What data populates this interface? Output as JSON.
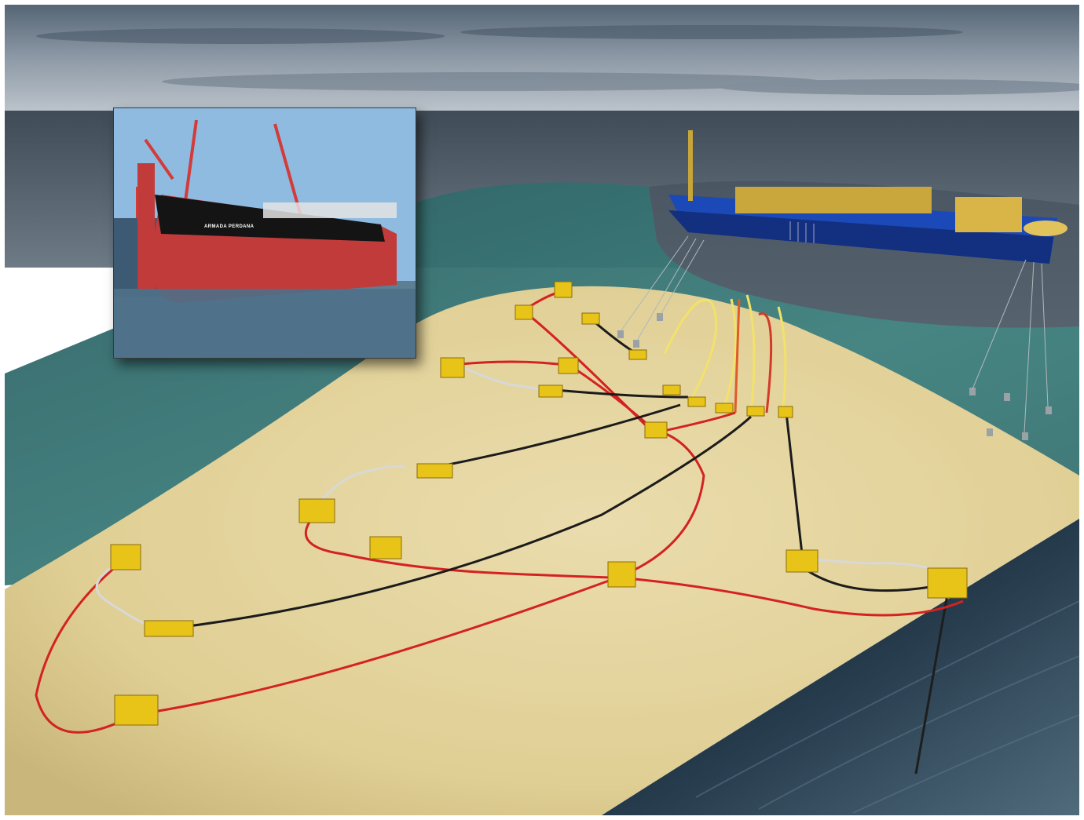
{
  "scene": {
    "colors": {
      "sky_top": "#5f6f7e",
      "sky_horizon": "#b9c1c8",
      "sea_surface": "#4a5966",
      "water": "#2e6d6c",
      "seabed": "#e3d39c",
      "rock": "#2f4a5c",
      "flowline_red": "#d42222",
      "umbilical_black": "#1b1b1b",
      "jumper_white": "#d8d8d8",
      "riser_yellow": "#f2e26b",
      "equipment_yellow": "#e8c318",
      "fpso_hull": "#1b49b8"
    }
  },
  "inset_photo": {
    "hull_name": "ARMADA PERDANA",
    "colors": {
      "sky": "#8fbbe0",
      "hull_red": "#c23b3b",
      "hull_black": "#141414",
      "crane": "#d33b3b"
    }
  }
}
